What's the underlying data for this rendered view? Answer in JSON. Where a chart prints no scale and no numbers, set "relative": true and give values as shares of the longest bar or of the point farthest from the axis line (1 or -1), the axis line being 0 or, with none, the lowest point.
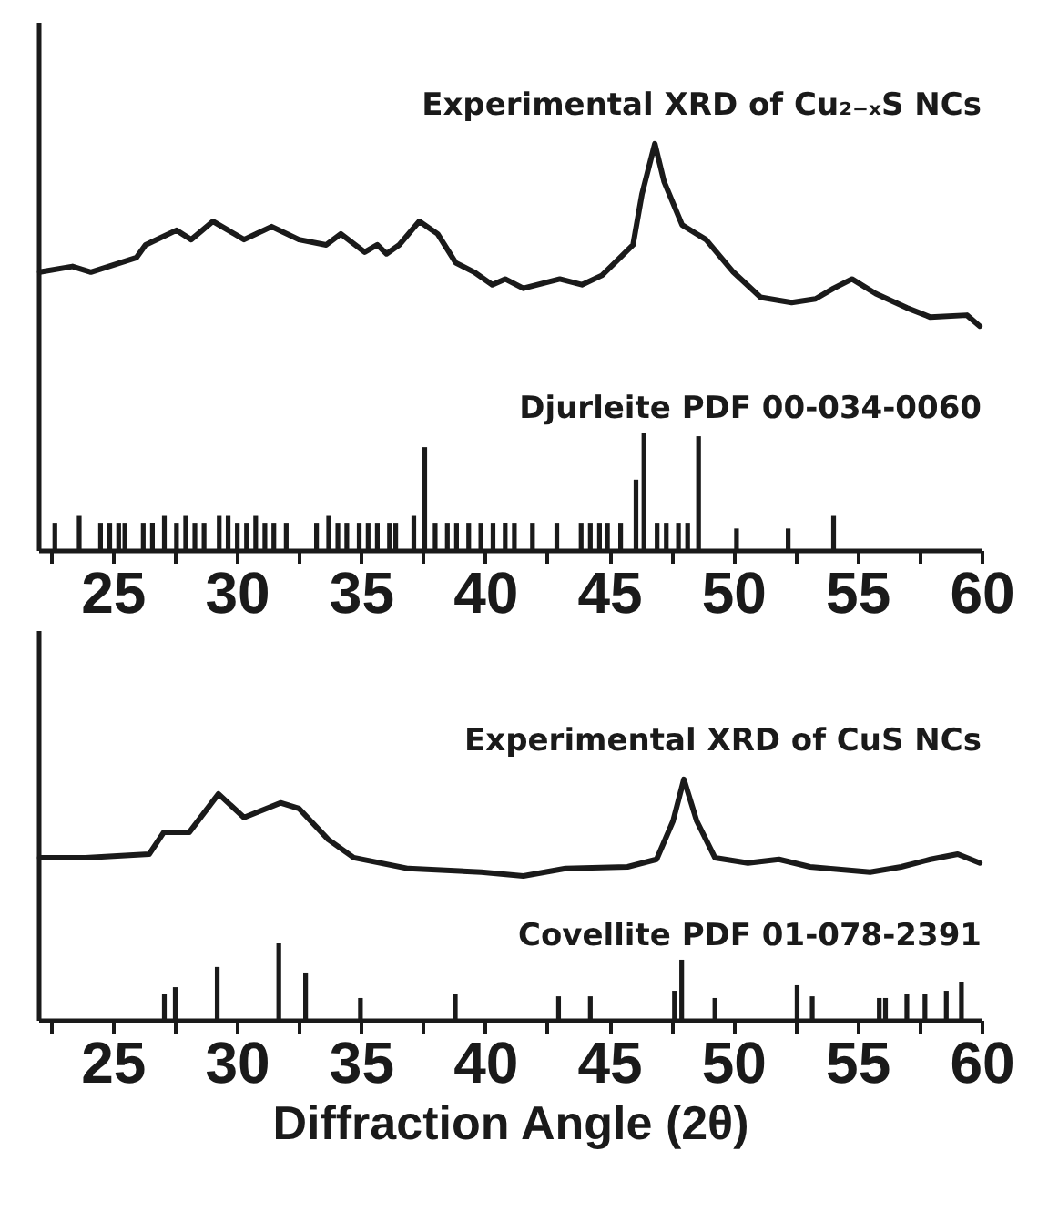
{
  "chart_data": [
    {
      "type": "line",
      "relative": true,
      "tick_labels": "x",
      "xlim": [
        22,
        60
      ],
      "xticks": [
        {
          "value": 22.5,
          "label": null
        },
        25,
        {
          "value": 27.5,
          "label": null
        },
        30,
        {
          "value": 32.5,
          "label": null
        },
        35,
        {
          "value": 37.5,
          "label": null
        },
        40,
        {
          "value": 42.5,
          "label": null
        },
        45,
        {
          "value": 47.5,
          "label": null
        },
        50,
        {
          "value": 52.5,
          "label": null
        },
        55,
        {
          "value": 57.5,
          "label": null
        },
        60
      ],
      "series": [
        {
          "name": "Experimental XRD of Cu₂₋ₓS NCs",
          "color": "#1a1a1a",
          "x": [
            22.06,
            23.38,
            24.12,
            25.96,
            26.32,
            27.57,
            28.16,
            29.04,
            30.29,
            31.4,
            32.5,
            33.6,
            34.19,
            35.15,
            35.66,
            36.03,
            36.54,
            37.35,
            38.09,
            38.82,
            39.56,
            40.29,
            40.81,
            41.54,
            43.01,
            43.9,
            44.71,
            45.44,
            45.96,
            46.32,
            46.84,
            47.21,
            47.94,
            48.9,
            50.0,
            51.1,
            52.35,
            53.31,
            54.04,
            54.78,
            55.74,
            56.99,
            57.94,
            59.41,
            59.93
          ],
          "values": [
            0.684,
            0.698,
            0.684,
            0.72,
            0.751,
            0.787,
            0.764,
            0.809,
            0.764,
            0.796,
            0.764,
            0.751,
            0.778,
            0.733,
            0.751,
            0.729,
            0.751,
            0.809,
            0.778,
            0.707,
            0.684,
            0.653,
            0.667,
            0.644,
            0.667,
            0.653,
            0.676,
            0.72,
            0.751,
            0.876,
            1.0,
            0.907,
            0.8,
            0.764,
            0.684,
            0.622,
            0.609,
            0.618,
            0.644,
            0.667,
            0.631,
            0.596,
            0.573,
            0.578,
            0.551
          ]
        },
        {
          "name": "Djurleite PDF 00-034-0060",
          "type": "bar",
          "color": "#1a1a1a",
          "x": [
            22.67,
            23.65,
            24.51,
            24.88,
            25.24,
            25.49,
            26.23,
            26.6,
            27.08,
            27.57,
            27.94,
            28.31,
            28.68,
            29.29,
            29.65,
            30.02,
            30.39,
            30.76,
            31.13,
            31.49,
            31.99,
            33.21,
            33.7,
            34.07,
            34.43,
            34.93,
            35.29,
            35.66,
            36.15,
            36.4,
            37.13,
            37.57,
            37.99,
            38.48,
            38.85,
            39.34,
            39.83,
            40.32,
            40.81,
            41.18,
            41.91,
            42.89,
            43.87,
            44.24,
            44.61,
            44.93,
            45.46,
            46.08,
            46.4,
            46.93,
            47.3,
            47.79,
            48.16,
            48.6,
            50.13,
            52.21,
            54.04
          ],
          "values": [
            0.067,
            0.084,
            0.067,
            0.067,
            0.067,
            0.067,
            0.067,
            0.067,
            0.084,
            0.067,
            0.084,
            0.067,
            0.067,
            0.084,
            0.084,
            0.067,
            0.067,
            0.084,
            0.067,
            0.067,
            0.067,
            0.067,
            0.084,
            0.067,
            0.067,
            0.067,
            0.067,
            0.067,
            0.067,
            0.067,
            0.084,
            0.253,
            0.067,
            0.067,
            0.067,
            0.067,
            0.067,
            0.067,
            0.067,
            0.067,
            0.067,
            0.067,
            0.067,
            0.067,
            0.067,
            0.067,
            0.067,
            0.173,
            0.289,
            0.067,
            0.067,
            0.067,
            0.067,
            0.28,
            0.053,
            0.053,
            0.084
          ]
        }
      ]
    },
    {
      "type": "line",
      "relative": true,
      "tick_labels": "x",
      "xlim": [
        22,
        60
      ],
      "xlabel": "Diffraction Angle (2θ)",
      "xticks": [
        {
          "value": 22.5,
          "label": null
        },
        25,
        {
          "value": 27.5,
          "label": null
        },
        30,
        {
          "value": 32.5,
          "label": null
        },
        35,
        {
          "value": 37.5,
          "label": null
        },
        40,
        {
          "value": 42.5,
          "label": null
        },
        45,
        {
          "value": 47.5,
          "label": null
        },
        50,
        {
          "value": 52.5,
          "label": null
        },
        55,
        {
          "value": 57.5,
          "label": null
        },
        60
      ],
      "series": [
        {
          "name": "Experimental XRD of CuS NCs",
          "color": "#1a1a1a",
          "x": [
            22.06,
            23.9,
            26.47,
            27.06,
            28.09,
            29.26,
            30.29,
            31.76,
            32.5,
            33.68,
            34.71,
            36.91,
            39.85,
            41.54,
            43.24,
            45.74,
            46.91,
            47.57,
            48.01,
            48.53,
            49.26,
            50.59,
            51.84,
            53.09,
            55.51,
            56.76,
            57.94,
            59.04,
            59.93
          ],
          "values": [
            0.674,
            0.674,
            0.689,
            0.78,
            0.78,
            0.939,
            0.841,
            0.902,
            0.879,
            0.75,
            0.674,
            0.629,
            0.614,
            0.598,
            0.629,
            0.636,
            0.667,
            0.826,
            1.0,
            0.826,
            0.674,
            0.652,
            0.667,
            0.636,
            0.614,
            0.636,
            0.667,
            0.689,
            0.652
          ]
        },
        {
          "name": "Covellite PDF 01-078-2391",
          "type": "bar",
          "color": "#1a1a1a",
          "x": [
            27.08,
            27.52,
            29.21,
            31.69,
            32.77,
            34.98,
            38.8,
            42.96,
            44.24,
            47.63,
            47.92,
            49.26,
            52.57,
            53.18,
            55.88,
            56.13,
            56.99,
            57.72,
            58.58,
            59.19
          ],
          "values": [
            0.106,
            0.136,
            0.22,
            0.318,
            0.197,
            0.091,
            0.106,
            0.098,
            0.098,
            0.121,
            0.25,
            0.091,
            0.144,
            0.098,
            0.091,
            0.091,
            0.106,
            0.106,
            0.121,
            0.159
          ]
        }
      ]
    }
  ]
}
